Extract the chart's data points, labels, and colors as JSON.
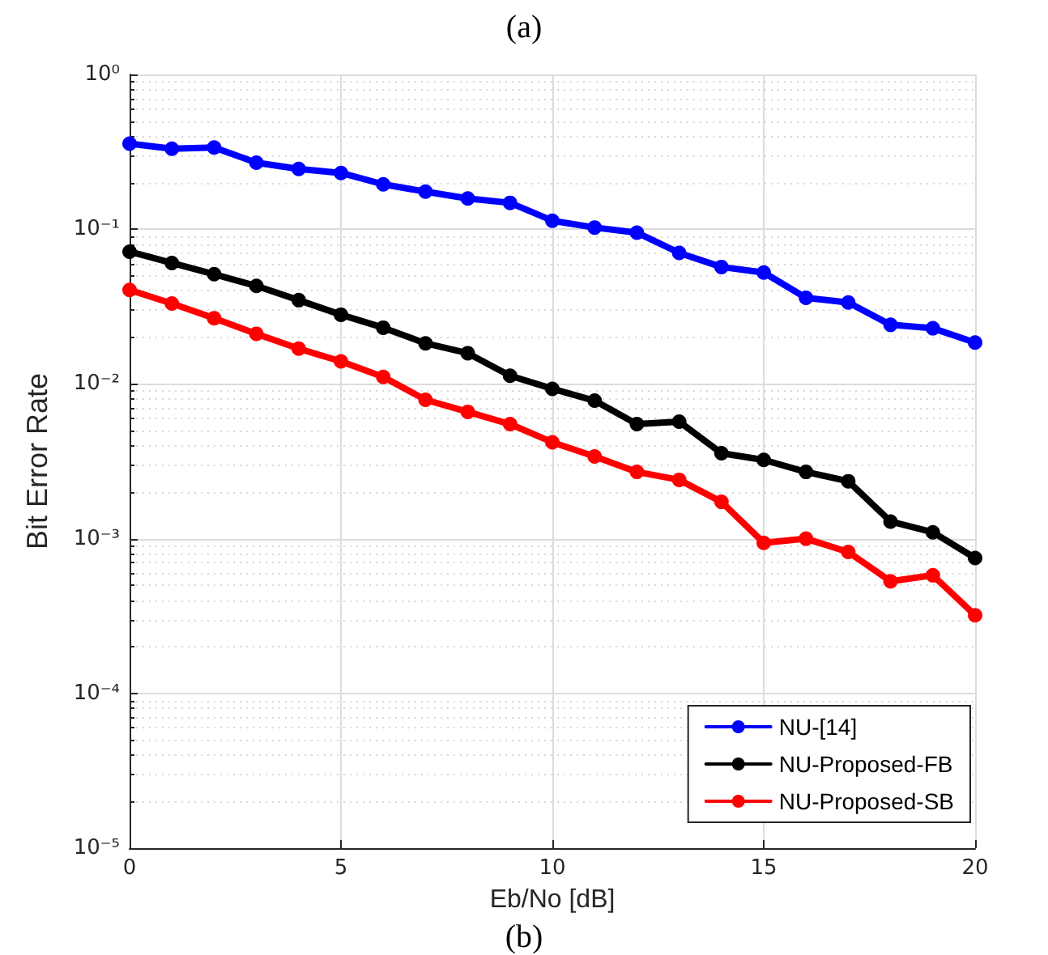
{
  "chart_data": {
    "type": "line",
    "title": "(a)",
    "xlabel": "Eb/No [dB]",
    "ylabel": "Bit Error Rate",
    "annotations": [
      "(b)"
    ],
    "x": [
      0,
      1,
      2,
      3,
      4,
      5,
      6,
      7,
      8,
      9,
      10,
      11,
      12,
      13,
      14,
      15,
      16,
      17,
      18,
      19,
      20
    ],
    "series": [
      {
        "name": "NU-[14]",
        "color": "#0000ff",
        "values": [
          0.357,
          0.331,
          0.337,
          0.269,
          0.245,
          0.231,
          0.195,
          0.175,
          0.158,
          0.148,
          0.1135,
          0.1025,
          0.095,
          0.0703,
          0.057,
          0.0525,
          0.036,
          0.0336,
          0.0241,
          0.0229,
          0.0185
        ]
      },
      {
        "name": "NU-Proposed-FB",
        "color": "#000000",
        "values": [
          0.0716,
          0.0605,
          0.0512,
          0.043,
          0.0348,
          0.028,
          0.0231,
          0.0183,
          0.0158,
          0.0113,
          0.0093,
          0.0078,
          0.0055,
          0.0057,
          0.00357,
          0.00323,
          0.0027,
          0.00235,
          0.00129,
          0.0011,
          0.00075
        ]
      },
      {
        "name": "NU-Proposed-SB",
        "color": "#ff0000",
        "values": [
          0.0405,
          0.0331,
          0.0266,
          0.0211,
          0.0169,
          0.014,
          0.0111,
          0.0079,
          0.0066,
          0.0055,
          0.0042,
          0.0034,
          0.0027,
          0.0024,
          0.00173,
          0.00094,
          0.001,
          0.00082,
          0.00053,
          0.00058,
          0.00032
        ]
      }
    ],
    "xlim": [
      0,
      20
    ],
    "xticks": [
      0,
      5,
      10,
      15,
      20
    ],
    "ylim": [
      1e-05,
      1
    ],
    "yticks": [
      {
        "value": 1e-05,
        "label": "10⁻⁵"
      },
      {
        "value": 0.0001,
        "label": "10⁻⁴"
      },
      {
        "value": 0.001,
        "label": "10⁻³"
      },
      {
        "value": 0.01,
        "label": "10⁻²"
      },
      {
        "value": 0.1,
        "label": "10⁻¹"
      },
      {
        "value": 1,
        "label": "10⁰"
      }
    ],
    "log": "y",
    "grid": true,
    "legend": "bottom right",
    "marker": "circle",
    "line_style": "solid"
  }
}
